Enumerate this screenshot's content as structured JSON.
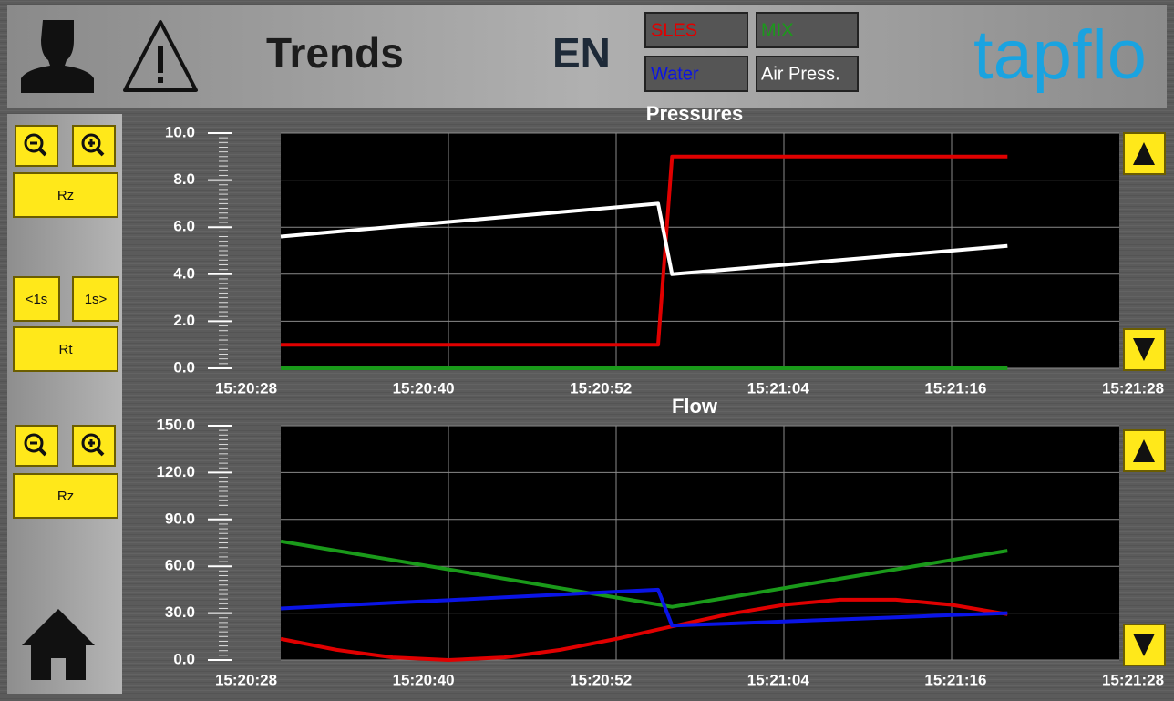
{
  "header": {
    "title": "Trends",
    "language": "EN",
    "logo": "tapflo"
  },
  "buttons": {
    "pressures": [
      "Rz",
      "<1s",
      "1s>",
      "Rt"
    ],
    "flow": [
      "Rz"
    ]
  },
  "chart_data": [
    {
      "type": "line",
      "title": "Pressures",
      "x": [
        "15:20:28",
        "15:20:55",
        "15:20:56",
        "15:21:20"
      ],
      "xlim": [
        "15:20:28",
        "15:21:28"
      ],
      "xticks": [
        "15:20:28",
        "15:20:40",
        "15:20:52",
        "15:21:04",
        "15:21:16",
        "15:21:28"
      ],
      "ylim": [
        0,
        10
      ],
      "yticks": [
        {
          "value": 0,
          "label": "0.0"
        },
        {
          "value": 2,
          "label": "2.0"
        },
        {
          "value": 4,
          "label": "4.0"
        },
        {
          "value": 6,
          "label": "6.0"
        },
        {
          "value": 8,
          "label": "8.0"
        },
        {
          "value": 10,
          "label": "10.0"
        }
      ],
      "grid": true,
      "series": [
        {
          "name": "SLES",
          "color": "#e00000",
          "values": [
            1.0,
            1.0,
            9.0,
            9.0
          ]
        },
        {
          "name": "MIX",
          "color": "#1a9a1a",
          "values": [
            0.0,
            0.0,
            0.0,
            0.0
          ]
        },
        {
          "name": "Air Press.",
          "color": "#ffffff",
          "values": [
            5.6,
            7.0,
            4.0,
            5.2
          ]
        }
      ]
    },
    {
      "type": "line",
      "title": "Flow",
      "x": [
        "15:20:28",
        "15:20:32",
        "15:20:36",
        "15:20:40",
        "15:20:44",
        "15:20:48",
        "15:20:52",
        "15:20:55",
        "15:20:56",
        "15:21:00",
        "15:21:04",
        "15:21:08",
        "15:21:12",
        "15:21:16",
        "15:21:20"
      ],
      "xlim": [
        "15:20:28",
        "15:21:28"
      ],
      "xticks": [
        "15:20:28",
        "15:20:40",
        "15:20:52",
        "15:21:04",
        "15:21:16",
        "15:21:28"
      ],
      "ylim": [
        0,
        150
      ],
      "yticks": [
        {
          "value": 0,
          "label": "0.0"
        },
        {
          "value": 30,
          "label": "30.0"
        },
        {
          "value": 60,
          "label": "60.0"
        },
        {
          "value": 90,
          "label": "90.0"
        },
        {
          "value": 120,
          "label": "120.0"
        },
        {
          "value": 150,
          "label": "150.0"
        }
      ],
      "grid": true,
      "series": [
        {
          "color": "#e00000",
          "values": [
            13.5,
            6.5,
            1.7,
            0.0,
            1.7,
            6.5,
            13.5,
            19.5,
            21.5,
            29.3,
            35.3,
            38.6,
            38.6,
            35.3,
            29.3
          ]
        },
        {
          "color": "#1a9a1a",
          "values": [
            76,
            70,
            64,
            58,
            52,
            46,
            40,
            35.5,
            34,
            40,
            46,
            52,
            58,
            64,
            70
          ]
        },
        {
          "name": "Water",
          "color": "#0a14e6",
          "values": [
            33,
            34.8,
            36.6,
            38.3,
            40.1,
            41.9,
            43.7,
            45,
            22,
            23.3,
            24.7,
            26,
            27.3,
            28.7,
            30
          ]
        }
      ]
    }
  ]
}
